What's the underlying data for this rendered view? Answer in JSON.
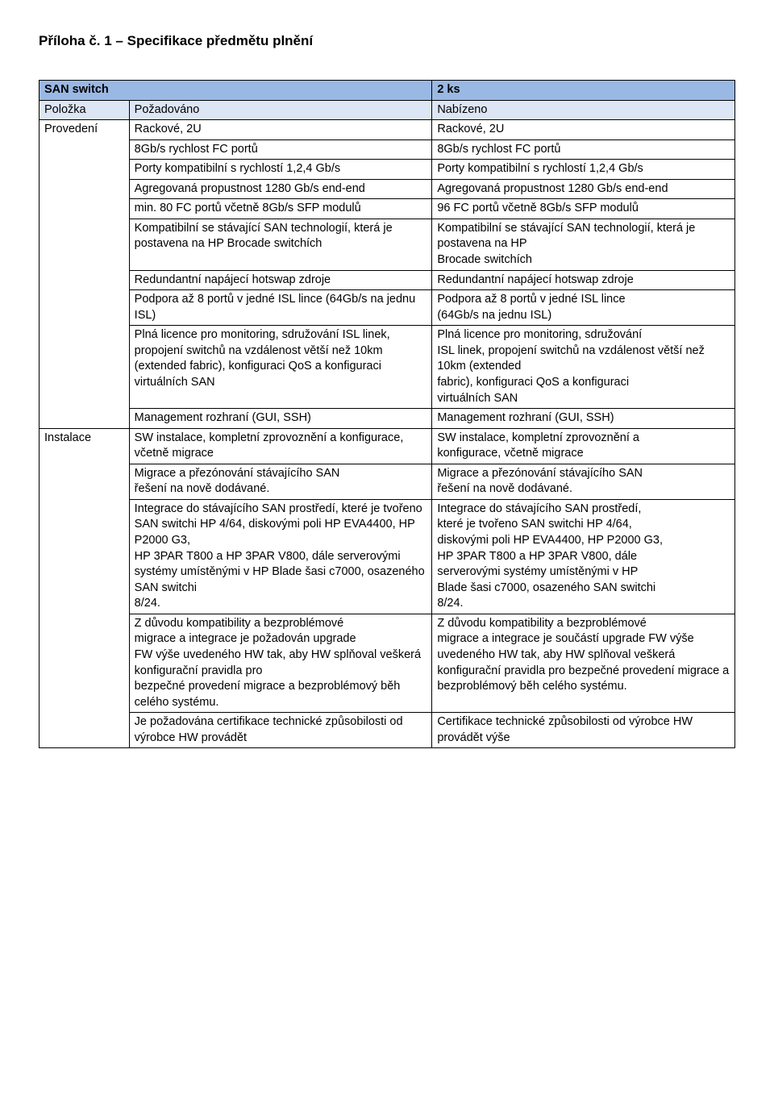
{
  "title": "Příloha č. 1 – Specifikace předmětu plnění",
  "table": {
    "header_row1": {
      "c1": "SAN switch",
      "c3": "2 ks"
    },
    "header_row2": {
      "c1": "Položka",
      "c2": "Požadováno",
      "c3": "Nabízeno"
    },
    "groups": [
      {
        "label": "Provedení",
        "rows": [
          {
            "req": "Rackové, 2U",
            "off": "Rackové, 2U"
          },
          {
            "req": "8Gb/s rychlost FC portů",
            "off": "8Gb/s rychlost FC portů"
          },
          {
            "req": "Porty kompatibilní s rychlostí 1,2,4 Gb/s",
            "off": "Porty kompatibilní s rychlostí 1,2,4 Gb/s"
          },
          {
            "req": "Agregovaná propustnost 1280 Gb/s end-end",
            "off": "Agregovaná propustnost 1280 Gb/s end-end"
          },
          {
            "req": "min. 80 FC portů včetně 8Gb/s SFP modulů",
            "off": "96 FC portů včetně 8Gb/s SFP modulů"
          },
          {
            "req": "Kompatibilní se stávající SAN technologií, která je postavena na HP Brocade switchích",
            "off": "Kompatibilní se stávající SAN technologií, která je postavena na HP\nBrocade switchích"
          },
          {
            "req": "Redundantní napájecí hotswap zdroje",
            "off": "Redundantní napájecí hotswap zdroje"
          },
          {
            "req": "Podpora až 8 portů v jedné ISL lince (64Gb/s na jednu ISL)",
            "off": "Podpora až 8 portů v jedné ISL lince\n(64Gb/s na jednu ISL)"
          },
          {
            "req": "Plná licence pro monitoring, sdružování ISL linek, propojení switchů na vzdálenost větší než 10km (extended fabric), konfiguraci QoS a konfiguraci virtuálních SAN",
            "off": "Plná licence pro monitoring, sdružování\nISL linek, propojení switchů na vzdálenost větší než 10km (extended\nfabric), konfiguraci QoS a konfiguraci\nvirtuálních SAN"
          },
          {
            "req": "Management rozhraní (GUI, SSH)",
            "off": "Management rozhraní (GUI, SSH)"
          }
        ]
      },
      {
        "label": "Instalace",
        "rows": [
          {
            "req": "SW instalace, kompletní zprovoznění a konfigurace, včetně migrace",
            "off": "SW instalace, kompletní zprovoznění a\nkonfigurace, včetně migrace"
          },
          {
            "req": "Migrace a přezónování stávajícího SAN\nřešení na nově dodávané.",
            "off": "Migrace a přezónování stávajícího SAN\nřešení na nově dodávané."
          },
          {
            "req": "Integrace do stávajícího SAN prostředí, které je tvořeno SAN switchi HP 4/64, diskovými poli HP EVA4400, HP P2000 G3,\nHP 3PAR T800 a HP 3PAR V800, dále serverovými systémy umístěnými v HP Blade šasi c7000, osazeného SAN switchi\n8/24.",
            "off": "Integrace do stávajícího SAN prostředí,\nkteré je tvořeno SAN switchi HP 4/64,\ndiskovými poli HP EVA4400, HP P2000 G3,\nHP 3PAR T800 a HP 3PAR V800, dále\nserverovými systémy umístěnými v HP\nBlade šasi c7000, osazeného SAN switchi\n8/24."
          },
          {
            "req": "Z důvodu kompatibility a bezproblémové\nmigrace a integrace je požadován upgrade\nFW výše uvedeného HW tak, aby HW splňoval veškerá konfigurační pravidla pro\nbezpečné provedení migrace a bezproblémový běh celého systému.",
            "off": "Z důvodu kompatibility a bezproblémové\nmigrace a integrace je součástí upgrade FW výše uvedeného HW tak, aby HW splňoval veškerá konfigurační pravidla pro bezpečné provedení migrace a bezproblémový běh celého systému."
          },
          {
            "req": "Je požadována certifikace technické způsobilosti od výrobce HW provádět",
            "off": "Certifikace technické způsobilosti od výrobce HW provádět výše"
          }
        ]
      }
    ]
  }
}
